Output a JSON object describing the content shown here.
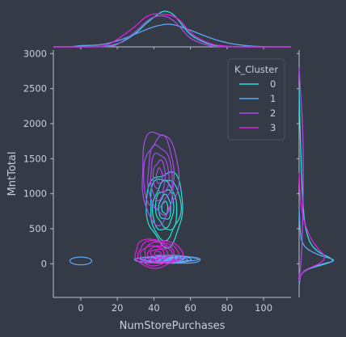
{
  "chart_data": {
    "type": "contour",
    "title": "",
    "xlabel": "NumStorePurchases",
    "ylabel": "MntTotal",
    "xlim": [
      -15,
      115
    ],
    "ylim": [
      -480,
      3050
    ],
    "xticks": [
      0,
      20,
      40,
      60,
      80,
      100
    ],
    "yticks": [
      0,
      500,
      1000,
      1500,
      2000,
      2500,
      3000
    ],
    "legend": {
      "title": "K_Cluster",
      "position": "top-right"
    },
    "series": [
      {
        "name": "0",
        "color": "#28e0d8",
        "center": [
          46,
          800
        ],
        "spread": [
          10,
          520
        ],
        "levels": 6,
        "marg_x": [
          [
            10,
            0
          ],
          [
            20,
            0.05
          ],
          [
            30,
            0.35
          ],
          [
            35,
            0.6
          ],
          [
            40,
            0.8
          ],
          [
            45,
            0.98
          ],
          [
            50,
            0.92
          ],
          [
            55,
            0.62
          ],
          [
            60,
            0.3
          ],
          [
            70,
            0.06
          ],
          [
            80,
            0
          ]
        ],
        "marg_y": [
          [
            -300,
            0
          ],
          [
            -100,
            0.05
          ],
          [
            0,
            0.7
          ],
          [
            50,
            0.95
          ],
          [
            200,
            0.35
          ],
          [
            500,
            0.15
          ],
          [
            1000,
            0.08
          ],
          [
            1500,
            0.05
          ],
          [
            2000,
            0.02
          ],
          [
            2500,
            0
          ]
        ]
      },
      {
        "name": "1",
        "color": "#5fa8f5",
        "center": [
          48,
          60
        ],
        "spread": [
          18,
          55
        ],
        "levels": 7,
        "marg_x": [
          [
            -5,
            0
          ],
          [
            0,
            0.04
          ],
          [
            10,
            0.04
          ],
          [
            20,
            0.15
          ],
          [
            30,
            0.35
          ],
          [
            40,
            0.55
          ],
          [
            45,
            0.6
          ],
          [
            50,
            0.62
          ],
          [
            60,
            0.45
          ],
          [
            70,
            0.25
          ],
          [
            80,
            0.1
          ],
          [
            90,
            0.03
          ],
          [
            100,
            0
          ]
        ],
        "marg_y": [
          [
            -300,
            0
          ],
          [
            -100,
            0.05
          ],
          [
            0,
            0.6
          ],
          [
            50,
            1.0
          ],
          [
            120,
            0.5
          ],
          [
            250,
            0.08
          ],
          [
            500,
            0.02
          ],
          [
            800,
            0
          ]
        ]
      },
      {
        "name": "2",
        "color": "#a84be8",
        "center": [
          43,
          1250
        ],
        "spread": [
          10,
          650
        ],
        "levels": 6,
        "marg_x": [
          [
            15,
            0
          ],
          [
            20,
            0.05
          ],
          [
            30,
            0.4
          ],
          [
            35,
            0.65
          ],
          [
            40,
            0.82
          ],
          [
            45,
            0.85
          ],
          [
            50,
            0.75
          ],
          [
            55,
            0.5
          ],
          [
            60,
            0.2
          ],
          [
            70,
            0.03
          ],
          [
            75,
            0
          ]
        ],
        "marg_y": [
          [
            -200,
            0
          ],
          [
            0,
            0.05
          ],
          [
            300,
            0.08
          ],
          [
            800,
            0.1
          ],
          [
            1300,
            0.11
          ],
          [
            1800,
            0.1
          ],
          [
            2200,
            0.07
          ],
          [
            2500,
            0.03
          ],
          [
            2800,
            0
          ]
        ]
      },
      {
        "name": "3",
        "color": "#e020e0",
        "center": [
          42,
          150
        ],
        "spread": [
          13,
          200
        ],
        "levels": 7,
        "marg_x": [
          [
            10,
            0
          ],
          [
            15,
            0.05
          ],
          [
            20,
            0.2
          ],
          [
            30,
            0.55
          ],
          [
            35,
            0.8
          ],
          [
            40,
            0.9
          ],
          [
            45,
            0.88
          ],
          [
            50,
            0.85
          ],
          [
            55,
            0.7
          ],
          [
            60,
            0.35
          ],
          [
            70,
            0.08
          ],
          [
            80,
            0
          ]
        ],
        "marg_y": [
          [
            -250,
            0
          ],
          [
            -100,
            0.08
          ],
          [
            0,
            0.55
          ],
          [
            100,
            0.7
          ],
          [
            200,
            0.5
          ],
          [
            400,
            0.25
          ],
          [
            700,
            0.08
          ],
          [
            1000,
            0.02
          ],
          [
            1300,
            0
          ]
        ]
      }
    ]
  }
}
